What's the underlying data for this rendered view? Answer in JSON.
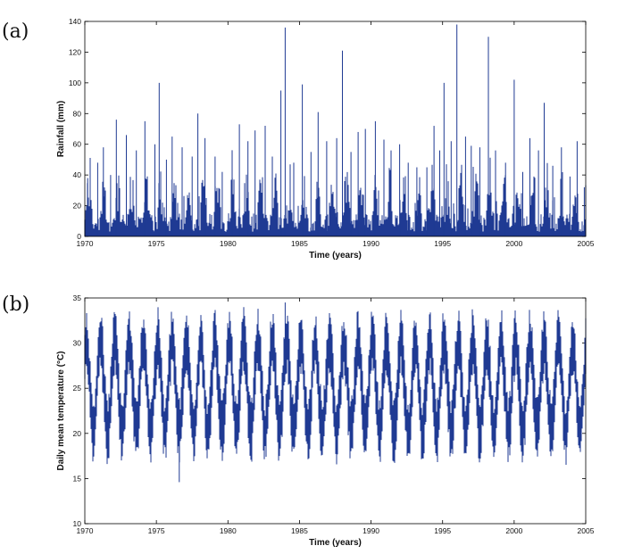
{
  "panel_labels": [
    "(a)",
    "(b)"
  ],
  "colors": {
    "series": "#1f3a93",
    "axis": "#000000"
  },
  "chart_data": [
    {
      "type": "line",
      "panel": "(a)",
      "title": "",
      "xlabel": "Time (years)",
      "ylabel": "Rainfall (mm)",
      "xlim": [
        1970,
        2005
      ],
      "ylim": [
        0,
        140
      ],
      "x_ticks": [
        1970,
        1975,
        1980,
        1985,
        1990,
        1995,
        2000,
        2005
      ],
      "y_ticks": [
        0,
        20,
        40,
        60,
        80,
        100,
        120,
        140
      ],
      "grid": false,
      "series": [
        {
          "description_note_free": true,
          "values_kind": "daily",
          "peaks": [
            [
              1970.2,
              38
            ],
            [
              1970.9,
              48
            ],
            [
              1971.3,
              58
            ],
            [
              1971.8,
              40
            ],
            [
              1972.2,
              76
            ],
            [
              1972.9,
              66
            ],
            [
              1973.6,
              56
            ],
            [
              1974.2,
              75
            ],
            [
              1974.9,
              60
            ],
            [
              1975.2,
              100
            ],
            [
              1975.7,
              50
            ],
            [
              1976.1,
              65
            ],
            [
              1976.8,
              58
            ],
            [
              1977.5,
              52
            ],
            [
              1977.9,
              80
            ],
            [
              1978.4,
              64
            ],
            [
              1979.1,
              52
            ],
            [
              1979.6,
              42
            ],
            [
              1980.3,
              38
            ],
            [
              1980.8,
              73
            ],
            [
              1981.4,
              62
            ],
            [
              1981.9,
              69
            ],
            [
              1982.6,
              72
            ],
            [
              1983.1,
              52
            ],
            [
              1983.7,
              95
            ],
            [
              1984.0,
              136
            ],
            [
              1984.6,
              48
            ],
            [
              1985.2,
              99
            ],
            [
              1985.8,
              55
            ],
            [
              1986.3,
              81
            ],
            [
              1986.9,
              62
            ],
            [
              1987.6,
              64
            ],
            [
              1988.0,
              121
            ],
            [
              1988.6,
              55
            ],
            [
              1989.1,
              68
            ],
            [
              1989.6,
              70
            ],
            [
              1990.3,
              75
            ],
            [
              1990.9,
              63
            ],
            [
              1991.4,
              56
            ],
            [
              1992.0,
              60
            ],
            [
              1992.6,
              48
            ],
            [
              1993.2,
              45
            ],
            [
              1993.9,
              45
            ],
            [
              1994.4,
              72
            ],
            [
              1994.8,
              56
            ],
            [
              1995.1,
              100
            ],
            [
              1995.6,
              62
            ],
            [
              1996.0,
              138
            ],
            [
              1996.6,
              65
            ],
            [
              1997.0,
              59
            ],
            [
              1997.6,
              58
            ],
            [
              1998.2,
              130
            ],
            [
              1998.7,
              56
            ],
            [
              1999.4,
              48
            ],
            [
              2000.0,
              102
            ],
            [
              2000.6,
              42
            ],
            [
              2001.1,
              64
            ],
            [
              2001.7,
              56
            ],
            [
              2002.1,
              87
            ],
            [
              2002.7,
              46
            ],
            [
              2003.3,
              58
            ],
            [
              2003.9,
              39
            ],
            [
              2004.4,
              62
            ],
            [
              2004.9,
              32
            ]
          ]
        }
      ]
    },
    {
      "type": "line",
      "panel": "(b)",
      "title": "",
      "xlabel": "Time (years)",
      "ylabel": "Daily mean temperature (°C)",
      "xlim": [
        1970,
        2005
      ],
      "ylim": [
        10,
        35
      ],
      "x_ticks": [
        1970,
        1975,
        1980,
        1985,
        1990,
        1995,
        2000,
        2005
      ],
      "y_ticks": [
        10,
        15,
        20,
        25,
        30,
        35
      ],
      "grid": false,
      "series": [
        {
          "period_years": 1,
          "mean": 25.2,
          "seasonal_amplitude": 5.0,
          "noise_range": 1.6,
          "max": 34.5,
          "min": 14.6
        }
      ]
    }
  ]
}
